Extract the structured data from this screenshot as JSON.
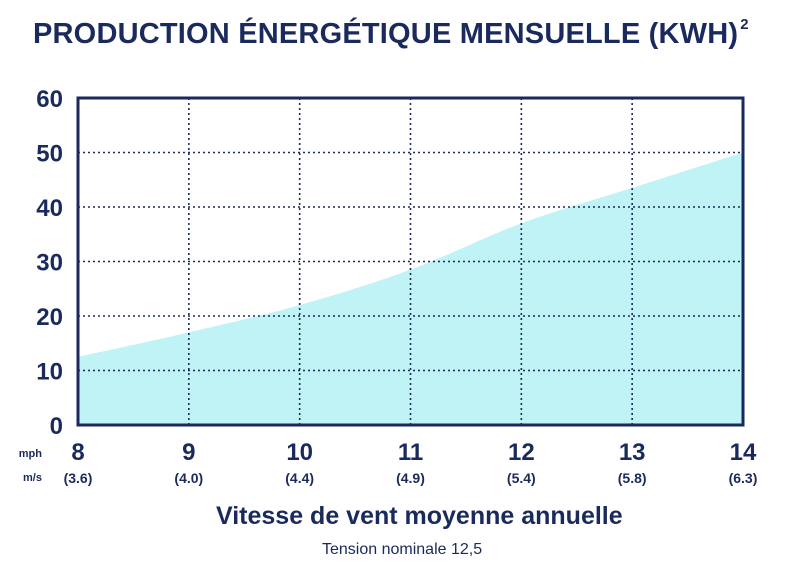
{
  "title": "PRODUCTION ÉNERGÉTIQUE MENSUELLE (KWH)",
  "title_superscript": "2",
  "footnote": "Tension nominale 12,5",
  "colors": {
    "text": "#1a2a5c",
    "fill": "#bff3f6",
    "grid": "#1a2a5c"
  },
  "chart_data": {
    "type": "area",
    "title": "PRODUCTION ÉNERGÉTIQUE MENSUELLE (KWH)",
    "xlabel": "Vitesse de vent moyenne annuelle",
    "ylabel": "",
    "x_unit_labels": [
      "mph",
      "m/s"
    ],
    "x": [
      8,
      9,
      10,
      11,
      12,
      13,
      14
    ],
    "x_secondary": [
      "(3.6)",
      "(4.0)",
      "(4.4)",
      "(4.9)",
      "(5.4)",
      "(5.8)",
      "(6.3)"
    ],
    "y": [
      12.5,
      17,
      22,
      28.5,
      37,
      43.5,
      50
    ],
    "ylim": [
      0,
      60
    ],
    "xlim": [
      8,
      14
    ],
    "yticks": [
      0,
      10,
      20,
      30,
      40,
      50,
      60
    ],
    "grid": true,
    "legend": "none"
  }
}
